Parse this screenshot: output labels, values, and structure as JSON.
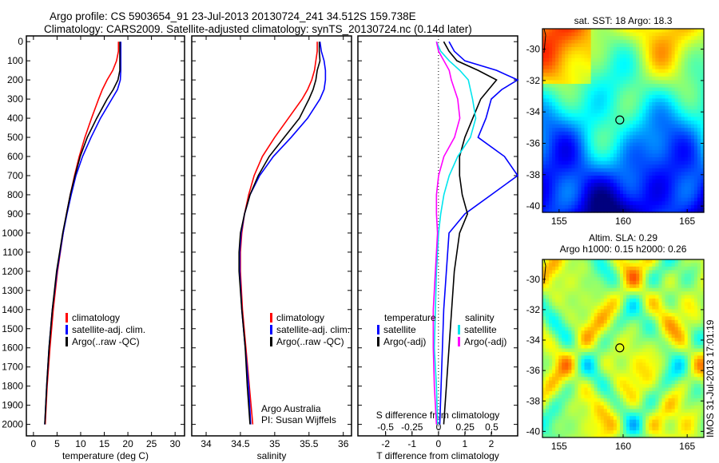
{
  "title_line1": "Argo profile: CS 5903654_91 23-Jul-2013 20130724_241 34.512S 159.738E",
  "title_line2": "Climatology: CARS2009. Satellite-adjusted climatology: synTS_20130724.nc (0.14d later)",
  "footer_stamp": "IMOS 31-Jul-2013 17:01:19",
  "colors": {
    "climatology": "#ff0000",
    "satellite": "#0000ff",
    "argo": "#000000",
    "sal_satellite": "#00e5ee",
    "sal_argo": "#ff00ff"
  },
  "chart_data": [
    {
      "type": "line",
      "id": "temperature",
      "xlabel": "temperature (deg C)",
      "ylabel": "",
      "xlim": [
        -1.5,
        32
      ],
      "ylim": [
        2060,
        -30
      ],
      "xticks": [
        0,
        5,
        10,
        15,
        20,
        25,
        30
      ],
      "yticks": [
        0,
        100,
        200,
        300,
        400,
        500,
        600,
        700,
        800,
        900,
        1000,
        1100,
        1200,
        1300,
        1400,
        1500,
        1600,
        1700,
        1800,
        1900,
        2000
      ],
      "legend": [
        "climatology",
        "satellite-adj. clim.",
        "Argo(..raw -QC)"
      ],
      "legend_placement": "lower-center",
      "depth": [
        0,
        50,
        100,
        150,
        200,
        250,
        300,
        400,
        500,
        600,
        700,
        800,
        900,
        1000,
        1200,
        1400,
        1600,
        1800,
        2000
      ],
      "series": [
        {
          "name": "climatology",
          "values": [
            18.0,
            18.0,
            17.6,
            16.8,
            15.6,
            14.6,
            13.8,
            12.3,
            10.9,
            9.7,
            8.7,
            7.8,
            7.0,
            6.3,
            5.1,
            4.2,
            3.5,
            2.9,
            2.5
          ]
        },
        {
          "name": "satellite-adj. clim.",
          "values": [
            18.5,
            18.5,
            18.5,
            18.5,
            18.4,
            17.8,
            16.6,
            14.2,
            12.2,
            10.4,
            9.0,
            8.0,
            7.1,
            6.3,
            5.0,
            4.0,
            3.3,
            2.8,
            2.4
          ]
        },
        {
          "name": "Argo(..raw -QC)",
          "values": [
            18.3,
            18.3,
            18.3,
            18.3,
            17.9,
            16.9,
            15.6,
            13.4,
            11.4,
            9.9,
            8.8,
            7.8,
            7.0,
            6.2,
            4.9,
            4.0,
            3.3,
            2.8,
            2.4
          ]
        }
      ]
    },
    {
      "type": "line",
      "id": "salinity",
      "xlabel": "salinity",
      "xlim": [
        33.79,
        36.12
      ],
      "ylim": [
        2060,
        -30
      ],
      "xticks": [
        34,
        34.5,
        35,
        35.5,
        36
      ],
      "legend": [
        "climatology",
        "satellite-adj. clim.",
        "Argo(..raw -QC)"
      ],
      "annotation": [
        "Argo Australia",
        "PI: Susan Wijffels"
      ],
      "depth": [
        0,
        50,
        100,
        150,
        200,
        250,
        300,
        400,
        500,
        600,
        700,
        800,
        900,
        1000,
        1100,
        1200,
        1400,
        1600,
        1800,
        2000
      ],
      "series": [
        {
          "name": "climatology",
          "values": [
            35.62,
            35.62,
            35.6,
            35.58,
            35.54,
            35.48,
            35.4,
            35.2,
            35.0,
            34.82,
            34.7,
            34.62,
            34.56,
            34.52,
            34.5,
            34.5,
            34.53,
            34.58,
            34.63,
            34.68
          ]
        },
        {
          "name": "satellite-adj. clim.",
          "values": [
            35.66,
            35.68,
            35.72,
            35.74,
            35.74,
            35.72,
            35.66,
            35.48,
            35.24,
            34.98,
            34.78,
            34.64,
            34.56,
            34.51,
            34.49,
            34.49,
            34.52,
            34.57,
            34.62,
            34.65
          ]
        },
        {
          "name": "Argo(..raw -QC)",
          "values": [
            35.65,
            35.65,
            35.66,
            35.62,
            35.6,
            35.56,
            35.5,
            35.36,
            35.14,
            34.92,
            34.76,
            34.64,
            34.56,
            34.5,
            34.48,
            34.48,
            34.52,
            34.57,
            34.6,
            34.64
          ]
        }
      ]
    },
    {
      "type": "line",
      "id": "difference",
      "xlabel": "T difference from climatology",
      "x2label": "S difference from climatology",
      "xlim": [
        -3.05,
        3.0
      ],
      "x2lim": [
        -0.76,
        0.745
      ],
      "ylim": [
        2060,
        -30
      ],
      "xticks": [
        -2,
        -1,
        0,
        1,
        2
      ],
      "x2ticks": [
        -0.5,
        -0.25,
        0,
        0.25,
        0.5
      ],
      "legend_temperature": {
        "title": "temperature",
        "items": [
          "satellite",
          "Argo(-adj)"
        ]
      },
      "legend_salinity": {
        "title": "salinity",
        "items": [
          "satellite",
          "Argo(-adj)"
        ]
      },
      "depth": [
        0,
        50,
        100,
        150,
        200,
        250,
        300,
        400,
        500,
        600,
        700,
        800,
        900,
        1000,
        1200,
        1400,
        1600,
        1800,
        2000
      ],
      "series": [
        {
          "name": "T satellite",
          "axis": "T",
          "values": [
            0.4,
            0.6,
            1.0,
            2.2,
            3.0,
            2.4,
            2.0,
            1.8,
            1.5,
            2.5,
            3.0,
            2.0,
            1.0,
            0.4,
            0.3,
            0.2,
            0.15,
            0.1,
            0.05
          ]
        },
        {
          "name": "T Argo(-adj)",
          "axis": "T",
          "values": [
            0.2,
            0.4,
            0.7,
            1.5,
            2.2,
            1.9,
            1.6,
            1.3,
            1.0,
            0.8,
            0.8,
            0.9,
            1.1,
            0.8,
            0.6,
            0.5,
            0.4,
            0.3,
            0.2
          ]
        },
        {
          "name": "S satellite",
          "axis": "S",
          "values": [
            -0.02,
            0.02,
            0.1,
            0.2,
            0.28,
            0.3,
            0.32,
            0.35,
            0.3,
            0.18,
            0.1,
            0.05,
            0.02,
            0.0,
            -0.02,
            -0.03,
            -0.04,
            -0.02,
            -0.01
          ]
        },
        {
          "name": "S Argo(-adj)",
          "axis": "S",
          "values": [
            -0.02,
            0.0,
            0.05,
            0.1,
            0.12,
            0.15,
            0.18,
            0.2,
            0.15,
            0.05,
            0.0,
            -0.02,
            -0.02,
            -0.01,
            -0.03,
            -0.05,
            -0.05,
            -0.04,
            -0.02
          ]
        }
      ]
    },
    {
      "type": "heatmap",
      "id": "sst-map",
      "title": "sat. SST: 18 Argo: 18.3",
      "xticks": [
        155,
        160,
        165
      ],
      "yticks": [
        -30,
        -32,
        -34,
        -36,
        -38,
        -40
      ],
      "xlim": [
        153.7,
        166.3
      ],
      "ylim": [
        -40.4,
        -28.7
      ],
      "marker": [
        159.738,
        -34.512
      ]
    },
    {
      "type": "heatmap",
      "id": "sla-map",
      "title": [
        "Altim. SLA: 0.29",
        "Argo h1000: 0.15 h2000: 0.26"
      ],
      "xticks": [
        155,
        160,
        165
      ],
      "yticks": [
        -30,
        -32,
        -34,
        -36,
        -38,
        -40
      ],
      "xlim": [
        153.7,
        166.3
      ],
      "ylim": [
        -40.4,
        -28.7
      ],
      "marker": [
        159.738,
        -34.512
      ]
    }
  ]
}
